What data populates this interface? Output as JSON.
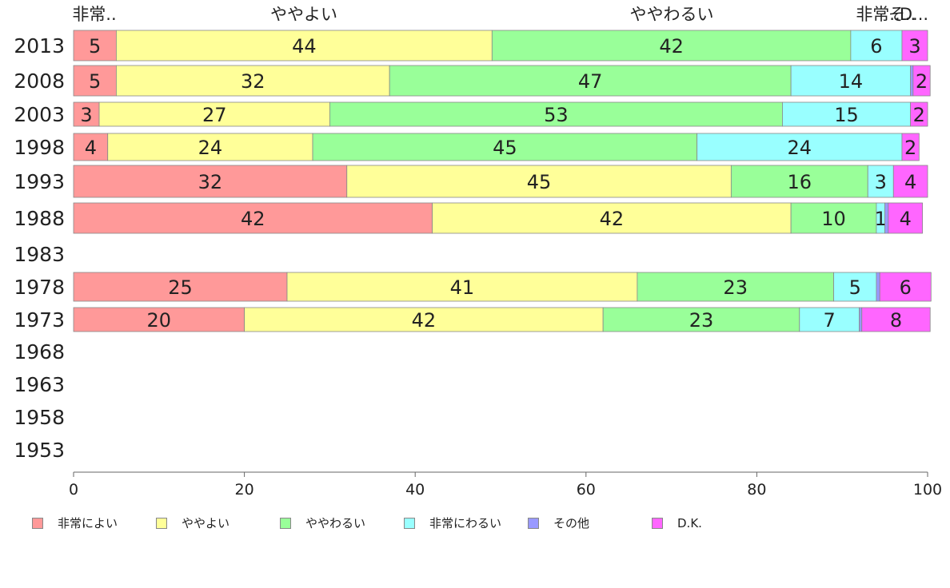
{
  "chart_data": {
    "type": "bar",
    "orientation": "horizontal",
    "stacked": true,
    "categories": [
      "2013",
      "2008",
      "2003",
      "1998",
      "1993",
      "1988",
      "1983",
      "1978",
      "1973",
      "1968",
      "1963",
      "1958",
      "1953"
    ],
    "top_labels": [
      "非常..",
      "ややよい",
      "ややわるい",
      "非常..",
      "そ..",
      "D..."
    ],
    "series": [
      {
        "name": "非常によい",
        "color": "#ff9999",
        "values": [
          5,
          5,
          3,
          4,
          32,
          42,
          null,
          25,
          20,
          null,
          null,
          null,
          null
        ],
        "labels": [
          "5",
          "5",
          "3",
          "4",
          "32",
          "42",
          "",
          "25",
          "20",
          "",
          "",
          "",
          ""
        ]
      },
      {
        "name": "ややよい",
        "color": "#ffff99",
        "values": [
          44,
          32,
          27,
          24,
          45,
          42,
          null,
          41,
          42,
          null,
          null,
          null,
          null
        ],
        "labels": [
          "44",
          "32",
          "27",
          "24",
          "45",
          "42",
          "",
          "41",
          "42",
          "",
          "",
          "",
          ""
        ]
      },
      {
        "name": "ややわるい",
        "color": "#99ff99",
        "values": [
          42,
          47,
          53,
          45,
          16,
          10,
          null,
          23,
          23,
          null,
          null,
          null,
          null
        ],
        "labels": [
          "42",
          "47",
          "53",
          "45",
          "16",
          "10",
          "",
          "23",
          "23",
          "",
          "",
          "",
          ""
        ]
      },
      {
        "name": "非常にわるい",
        "color": "#99ffff",
        "values": [
          6,
          14,
          15,
          24,
          3,
          1,
          null,
          5,
          7,
          null,
          null,
          null,
          null
        ],
        "labels": [
          "6",
          "14",
          "15",
          "24",
          "3",
          "1",
          "",
          "5",
          "7",
          "",
          "",
          "",
          ""
        ]
      },
      {
        "name": "その他",
        "color": "#9999ff",
        "values": [
          0,
          0.3,
          0,
          0,
          0,
          0.4,
          null,
          0.4,
          0.3,
          null,
          null,
          null,
          null
        ],
        "labels": [
          "",
          "",
          "",
          "",
          "",
          "",
          "",
          "",
          "",
          "",
          "",
          "",
          ""
        ]
      },
      {
        "name": "D.K.",
        "color": "#ff66ff",
        "values": [
          3,
          2,
          2,
          2,
          4,
          4,
          null,
          6,
          8,
          null,
          null,
          null,
          null
        ],
        "labels": [
          "3",
          "2",
          "2",
          "2",
          "4",
          "4",
          "",
          "6",
          "8",
          "",
          "",
          "",
          ""
        ]
      }
    ],
    "xlim": [
      0,
      100
    ],
    "xticks": [
      0,
      20,
      40,
      60,
      80,
      100
    ],
    "grid": false,
    "legend_position": "bottom"
  }
}
